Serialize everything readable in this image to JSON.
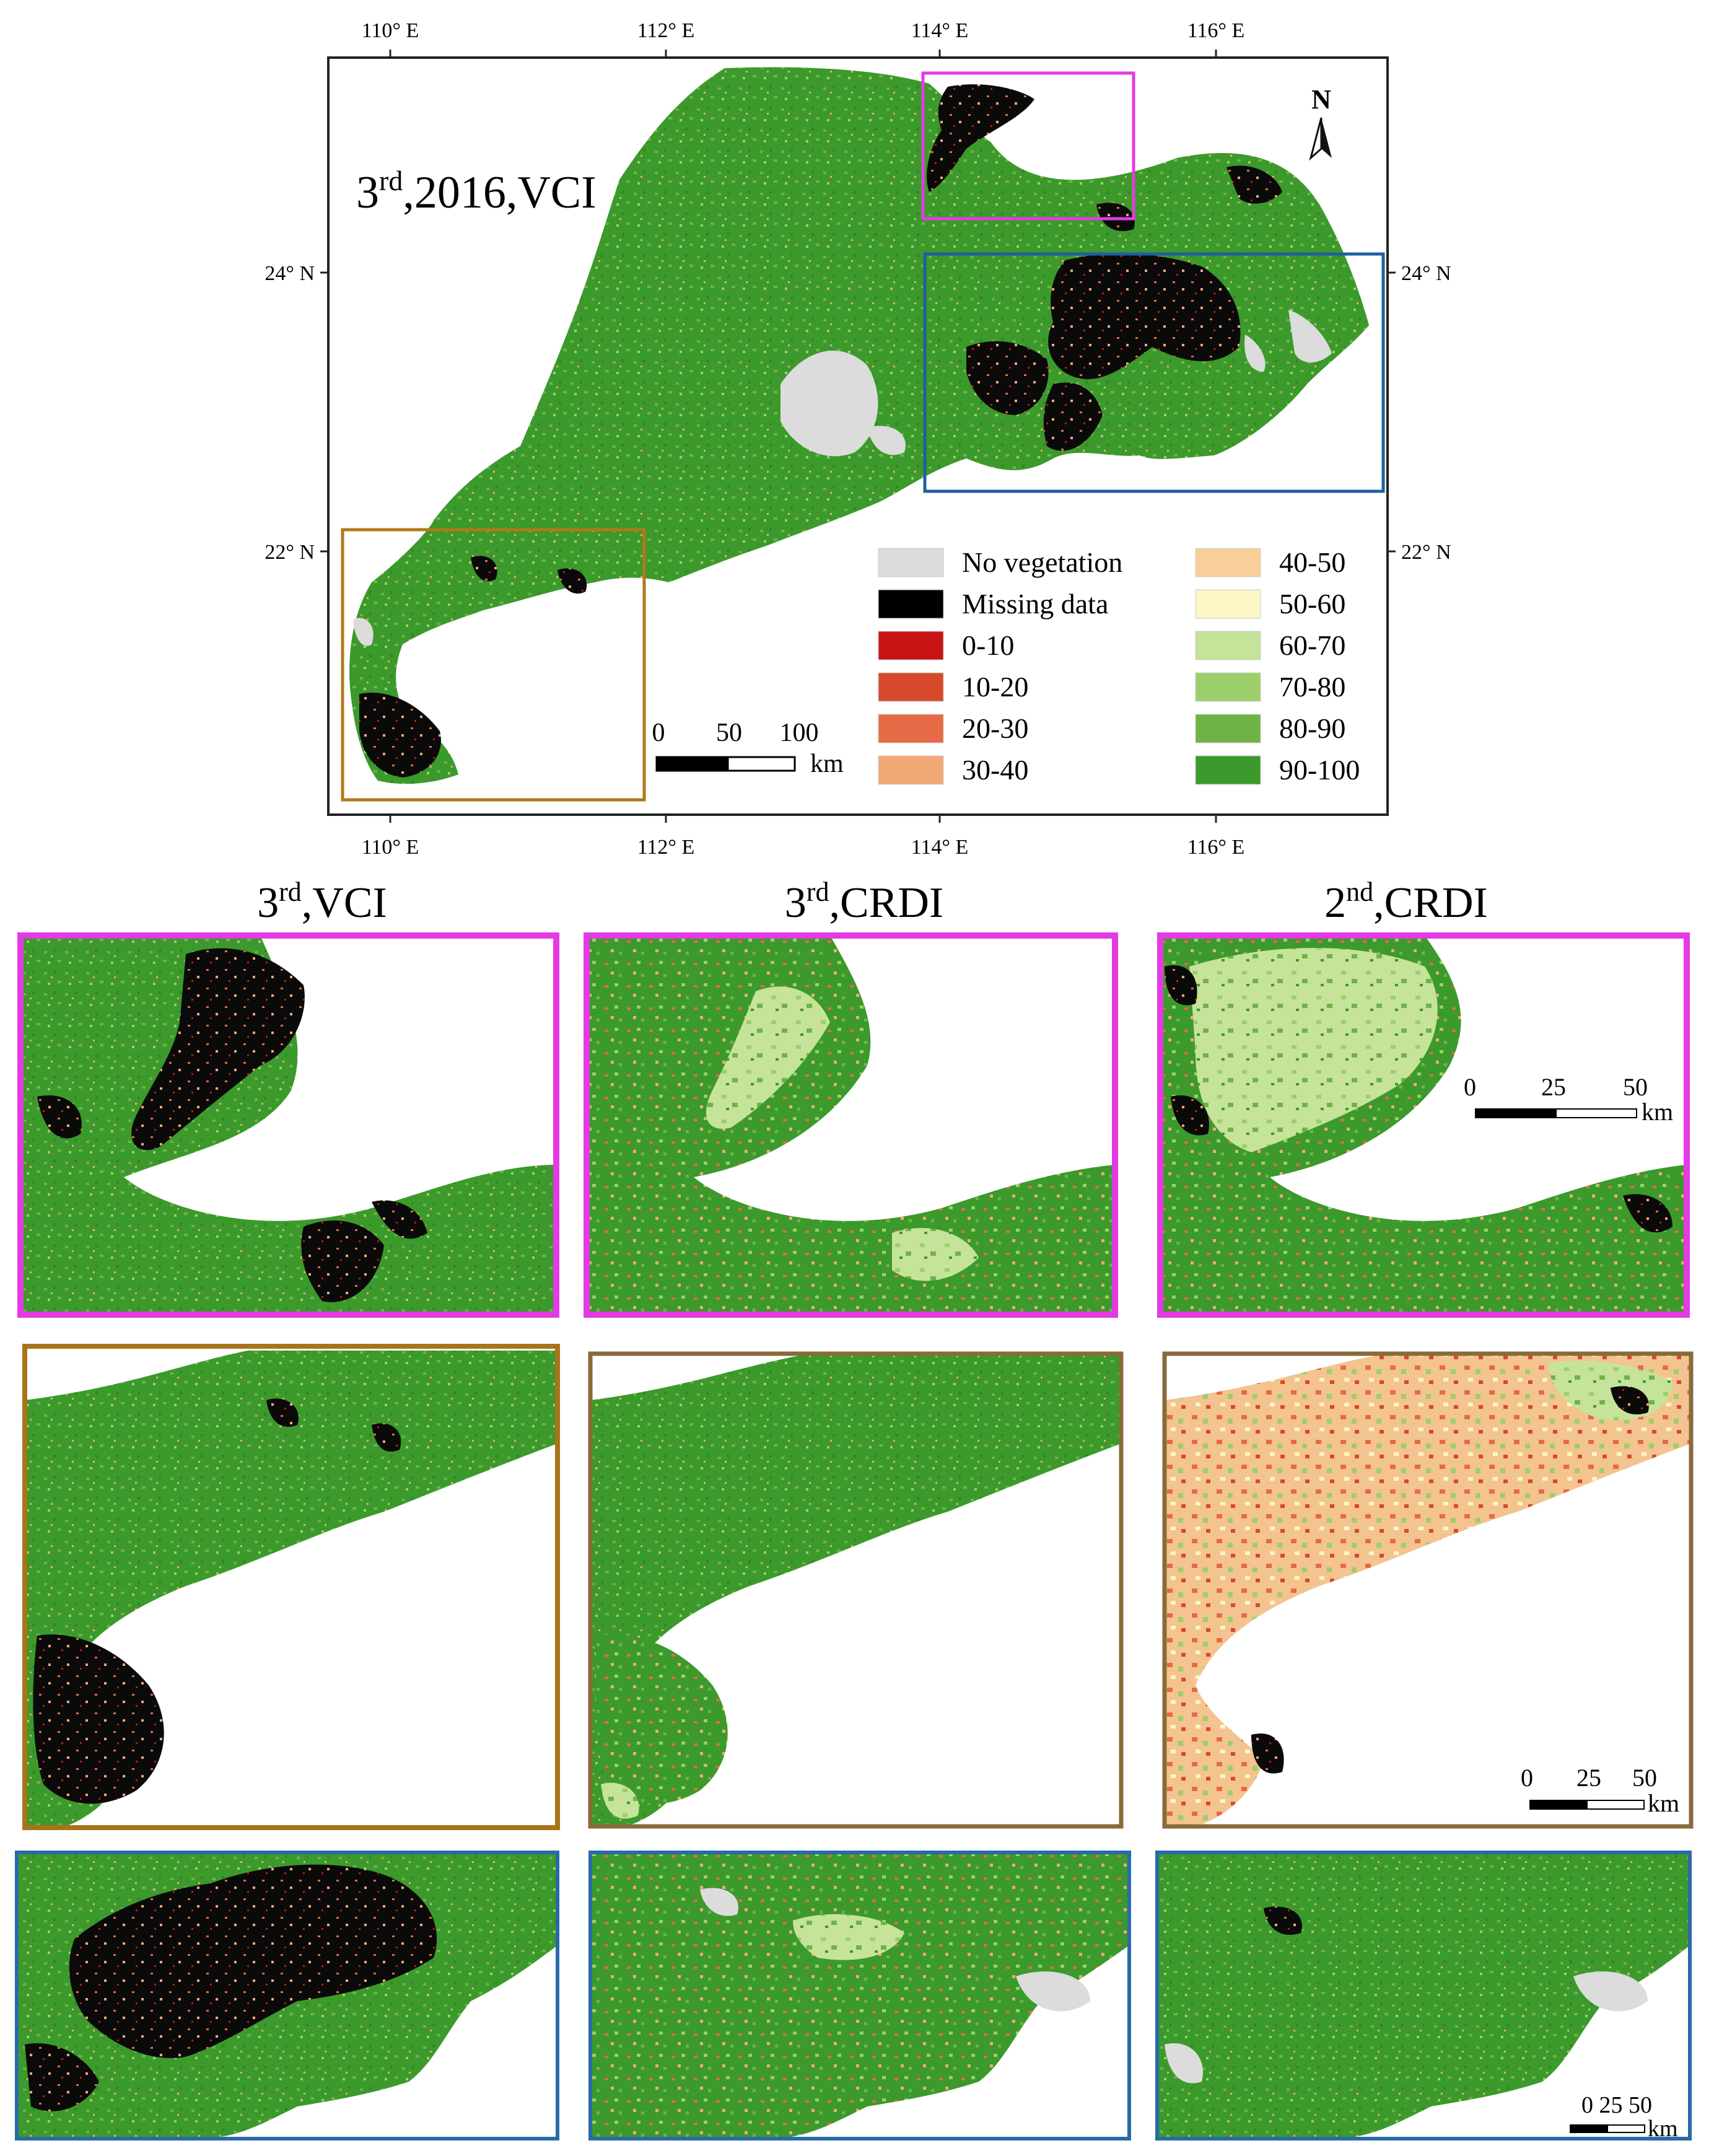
{
  "main_map": {
    "title": "3rd,2016,VCI",
    "title_parts": [
      "3",
      "rd",
      ",2016,VCI"
    ],
    "top_ticks": [
      "110° E",
      "112° E",
      "114° E",
      "116° E"
    ],
    "bottom_ticks": [
      "110° E",
      "112° E",
      "114° E",
      "116° E"
    ],
    "left_ticks": [
      "24° N",
      "22° N"
    ],
    "right_ticks": [
      "24° N",
      "22° N"
    ],
    "north_label": "N",
    "scale_labels": [
      "0",
      "50",
      "100"
    ],
    "scale_unit": "km",
    "highlight_box_colors": {
      "magenta": "#e33be3",
      "blue": "#1f5fa0",
      "brown": "#b07a1a"
    }
  },
  "legend": {
    "items": [
      {
        "label": "No vegetation",
        "color": "#dcdcdc"
      },
      {
        "label": "Missing data",
        "color": "#000000"
      },
      {
        "label": "0-10",
        "color": "#c81414"
      },
      {
        "label": "10-20",
        "color": "#d8482a"
      },
      {
        "label": "20-30",
        "color": "#e66a45"
      },
      {
        "label": "30-40",
        "color": "#f3a878"
      },
      {
        "label": "40-50",
        "color": "#f8cf9a"
      },
      {
        "label": "50-60",
        "color": "#fbf6c4"
      },
      {
        "label": "60-70",
        "color": "#c6e39a"
      },
      {
        "label": "70-80",
        "color": "#9ccf6a"
      },
      {
        "label": "80-90",
        "color": "#6fb348"
      },
      {
        "label": "90-100",
        "color": "#3b9a2b"
      }
    ]
  },
  "panels": {
    "columns": [
      {
        "title": "3rd,VCI",
        "parts": [
          "3",
          "rd",
          ",VCI"
        ]
      },
      {
        "title": "3rd,CRDI",
        "parts": [
          "3",
          "rd",
          ",CRDI"
        ]
      },
      {
        "title": "2nd,CRDI",
        "parts": [
          "2",
          "nd",
          ",CRDI"
        ]
      }
    ],
    "scale_magenta": {
      "labels": [
        "0",
        "25",
        "50"
      ],
      "unit": "km"
    },
    "scale_brown": {
      "labels": [
        "0",
        "25",
        "50"
      ],
      "unit": "km"
    },
    "scale_blue": {
      "label": "0 25 50",
      "unit": "km"
    }
  }
}
